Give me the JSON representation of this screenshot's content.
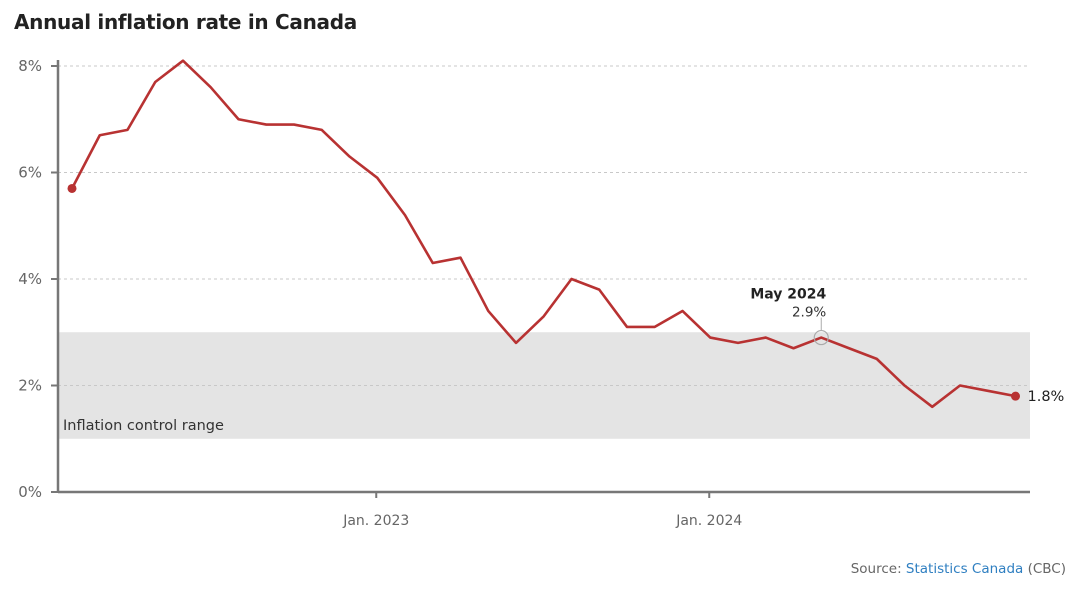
{
  "title": "Annual inflation rate in Canada",
  "source": {
    "prefix": "Source: ",
    "link_text": "Statistics Canada",
    "suffix": " (CBC)"
  },
  "colors": {
    "line": "#b83232",
    "band": "#e4e4e4",
    "axis": "#777777",
    "grid": "#c8c8c8"
  },
  "chart_data": {
    "type": "line",
    "title": "Annual inflation rate in Canada",
    "xlabel": "",
    "ylabel": "",
    "ylim": [
      0,
      8
    ],
    "yticks": [
      0,
      2,
      4,
      6,
      8
    ],
    "ytick_labels": [
      "0%",
      "2%",
      "4%",
      "6%",
      "8%"
    ],
    "xtick_labels": [
      {
        "label": "Jan. 2023",
        "index": 11
      },
      {
        "label": "Jan. 2024",
        "index": 23
      }
    ],
    "grid": true,
    "x": [
      "Feb 2022",
      "Mar 2022",
      "Apr 2022",
      "May 2022",
      "Jun 2022",
      "Jul 2022",
      "Aug 2022",
      "Sep 2022",
      "Oct 2022",
      "Nov 2022",
      "Dec 2022",
      "Jan 2023",
      "Feb 2023",
      "Mar 2023",
      "Apr 2023",
      "May 2023",
      "Jun 2023",
      "Jul 2023",
      "Aug 2023",
      "Sep 2023",
      "Oct 2023",
      "Nov 2023",
      "Dec 2023",
      "Jan 2024",
      "Feb 2024",
      "Mar 2024",
      "Apr 2024",
      "May 2024",
      "Jun 2024",
      "Jul 2024",
      "Aug 2024",
      "Sep 2024",
      "Oct 2024",
      "Nov 2024",
      "Dec 2024"
    ],
    "series": [
      {
        "name": "Annual inflation rate",
        "values": [
          5.7,
          6.7,
          6.8,
          7.7,
          8.1,
          7.6,
          7.0,
          6.9,
          6.9,
          6.8,
          6.3,
          5.9,
          5.2,
          4.3,
          4.4,
          3.4,
          2.8,
          3.3,
          4.0,
          3.8,
          3.1,
          3.1,
          3.4,
          2.9,
          2.8,
          2.9,
          2.7,
          2.9,
          2.7,
          2.5,
          2.0,
          1.6,
          2.0,
          1.9,
          1.8
        ]
      }
    ],
    "band": {
      "label": "Inflation control range",
      "from": 1,
      "to": 3
    },
    "annotation": {
      "index": 27,
      "title": "May 2024",
      "value_label": "2.9%"
    },
    "end_label": "1.8%"
  }
}
